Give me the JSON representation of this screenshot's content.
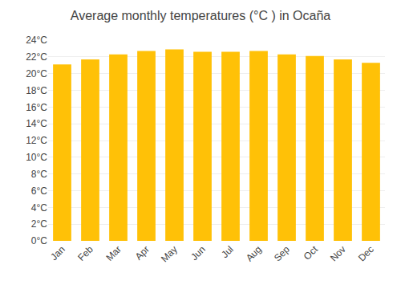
{
  "chart_data": {
    "type": "bar",
    "title": "Average monthly temperatures (°C ) in Ocaña",
    "categories": [
      "Jan",
      "Feb",
      "Mar",
      "Apr",
      "May",
      "Jun",
      "Jul",
      "Aug",
      "Sep",
      "Oct",
      "Nov",
      "Dec"
    ],
    "values": [
      21.1,
      21.7,
      22.3,
      22.7,
      22.9,
      22.6,
      22.6,
      22.7,
      22.3,
      22.1,
      21.7,
      21.3
    ],
    "color": "#FFC107",
    "ylim": [
      0,
      24
    ],
    "yticks": [
      {
        "value": 0,
        "label": "0°C"
      },
      {
        "value": 2,
        "label": "2°C"
      },
      {
        "value": 4,
        "label": "4°C"
      },
      {
        "value": 6,
        "label": "6°C"
      },
      {
        "value": 8,
        "label": "8°C"
      },
      {
        "value": 10,
        "label": "10°C"
      },
      {
        "value": 12,
        "label": "12°C"
      },
      {
        "value": 14,
        "label": "14°C"
      },
      {
        "value": 16,
        "label": "16°C"
      },
      {
        "value": 18,
        "label": "18°C"
      },
      {
        "value": 20,
        "label": "20°C"
      },
      {
        "value": 22,
        "label": "22°C"
      },
      {
        "value": 24,
        "label": "24°C"
      }
    ],
    "grid": true
  }
}
